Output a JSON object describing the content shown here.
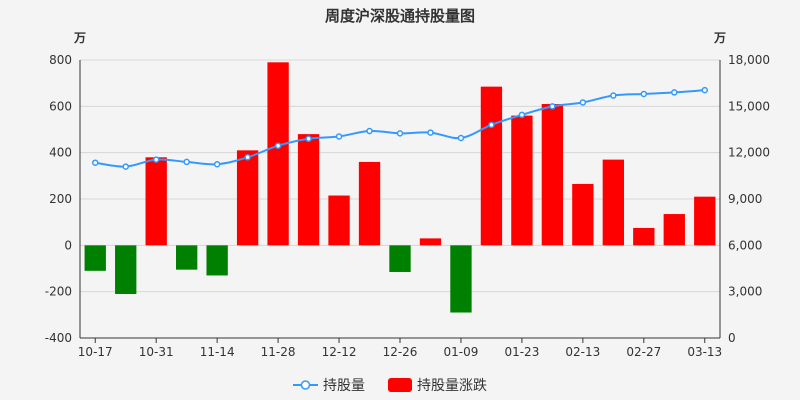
{
  "chart_data": {
    "type": "bar+line",
    "title": "周度沪深股通持股量图",
    "left_unit": "万",
    "right_unit": "万",
    "left_ylim": [
      -400,
      800
    ],
    "left_ticks": [
      -400,
      -200,
      0,
      200,
      400,
      600,
      800
    ],
    "right_ylim": [
      0,
      18000
    ],
    "right_ticks": [
      "0",
      "3,000",
      "6,000",
      "9,000",
      "12,000",
      "15,000",
      "18,000"
    ],
    "x_tick_labels": [
      "10-17",
      "10-31",
      "11-14",
      "11-28",
      "12-12",
      "12-26",
      "01-09",
      "01-23",
      "02-13",
      "02-27",
      "03-13"
    ],
    "x_tick_every": 2,
    "series": [
      {
        "name": "持股量",
        "kind": "line",
        "axis": "right",
        "color": "#3399ff",
        "values": [
          11350,
          11100,
          11550,
          11400,
          11250,
          11700,
          12450,
          12900,
          13050,
          13400,
          13250,
          13300,
          12950,
          13800,
          14450,
          15000,
          15250,
          15700,
          15800,
          15900,
          16050
        ]
      },
      {
        "name": "持股量涨跌",
        "kind": "bar",
        "axis": "left",
        "positive_color": "#ff0000",
        "negative_color": "#008000",
        "values": [
          -110,
          -210,
          380,
          -105,
          -130,
          410,
          790,
          480,
          215,
          360,
          -115,
          30,
          -290,
          685,
          560,
          610,
          265,
          370,
          75,
          135,
          210
        ]
      }
    ],
    "legend": {
      "position": "bottom-center",
      "items": [
        "持股量",
        "持股量涨跌"
      ]
    },
    "grid": true
  }
}
